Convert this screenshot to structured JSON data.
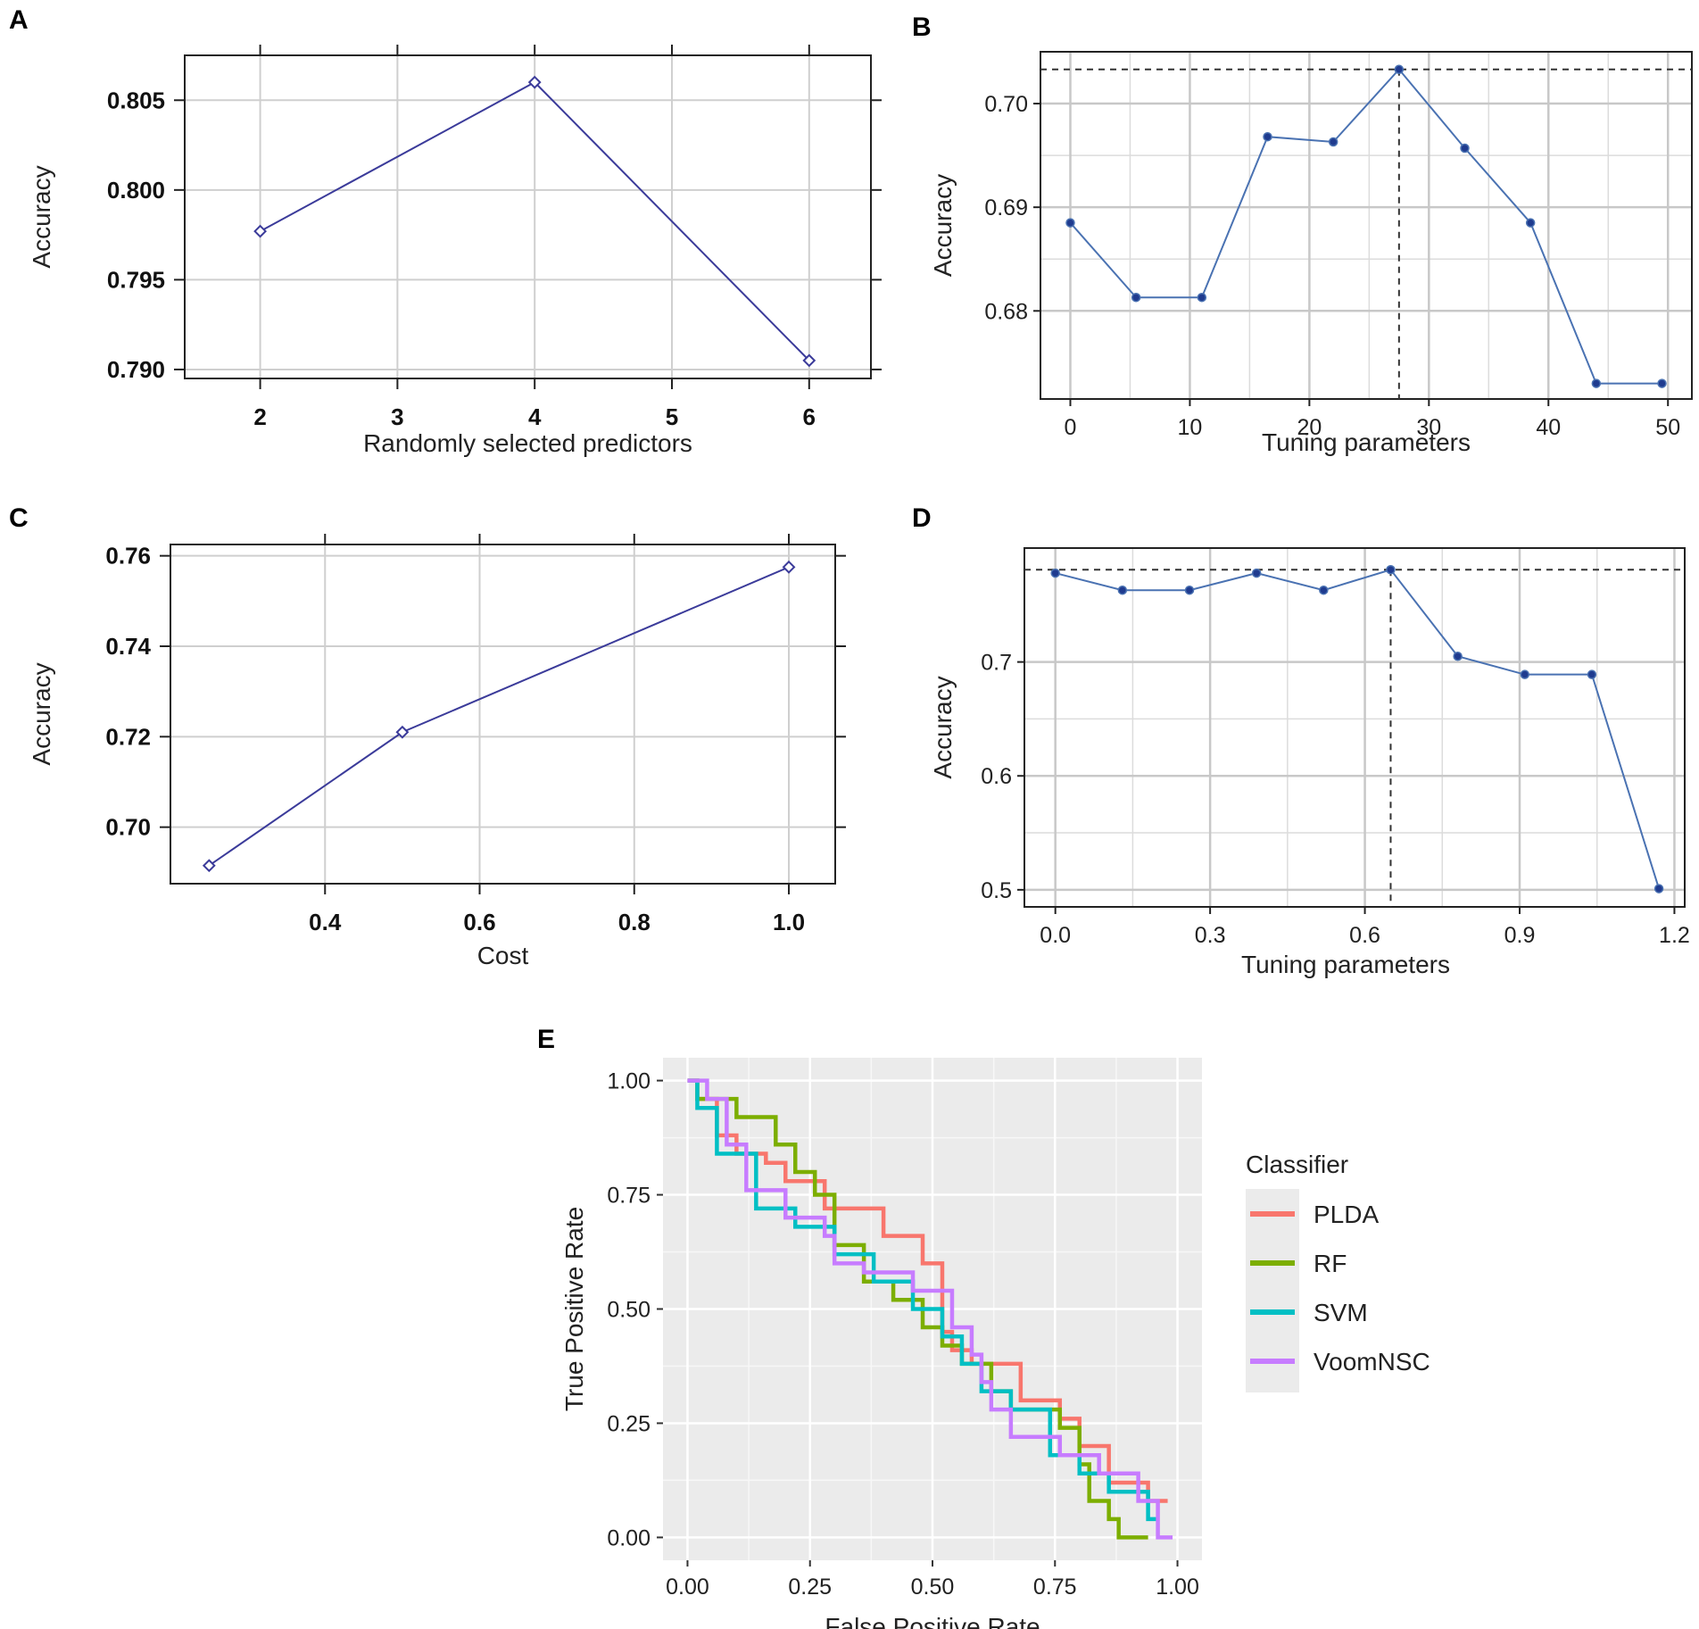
{
  "chart_data": [
    {
      "panel": "A",
      "type": "line",
      "title": "",
      "xlabel": "Randomly selected predictors",
      "ylabel": "Accuracy",
      "x": [
        2,
        4,
        6
      ],
      "y": [
        0.7977,
        0.806,
        0.7905
      ],
      "xticks": [
        "2",
        "3",
        "4",
        "5",
        "6"
      ],
      "yticks": [
        "0.790",
        "0.795",
        "0.800",
        "0.805"
      ],
      "xlim": [
        1.45,
        6.45
      ],
      "ylim": [
        0.7895,
        0.8075
      ],
      "marker": "diamond",
      "grid": true,
      "color": "#3b3b9a"
    },
    {
      "panel": "B",
      "type": "line",
      "title": "",
      "xlabel": "Tuning parameters",
      "ylabel": "Accuracy",
      "x": [
        0,
        5.5,
        11,
        16.5,
        22,
        27.5,
        33,
        38.5,
        44,
        49.5
      ],
      "y": [
        0.6885,
        0.6813,
        0.6813,
        0.6968,
        0.6963,
        0.7033,
        0.6957,
        0.6885,
        0.673,
        0.673
      ],
      "xticks": [
        "0",
        "10",
        "20",
        "30",
        "40",
        "50"
      ],
      "yticks": [
        "0.68",
        "0.69",
        "0.70"
      ],
      "xlim": [
        -2.5,
        52
      ],
      "ylim": [
        0.6715,
        0.705
      ],
      "best_x": 27.5,
      "best_y": 0.7033,
      "marker": "dot",
      "grid": true,
      "color": "#4a72b2"
    },
    {
      "panel": "C",
      "type": "line",
      "title": "",
      "xlabel": "Cost",
      "ylabel": "Accuracy",
      "x": [
        0.25,
        0.5,
        1.0
      ],
      "y": [
        0.6915,
        0.721,
        0.7575
      ],
      "xticks": [
        "0.4",
        "0.6",
        "0.8",
        "1.0"
      ],
      "yticks": [
        "0.70",
        "0.72",
        "0.74",
        "0.76"
      ],
      "xlim": [
        0.2,
        1.06
      ],
      "ylim": [
        0.6875,
        0.7625
      ],
      "marker": "diamond",
      "grid": true,
      "color": "#3b3b9a"
    },
    {
      "panel": "D",
      "type": "line",
      "title": "",
      "xlabel": "Tuning parameters",
      "ylabel": "Accuracy",
      "x": [
        0.0,
        0.13,
        0.26,
        0.39,
        0.52,
        0.65,
        0.78,
        0.91,
        1.04,
        1.17
      ],
      "y": [
        0.778,
        0.763,
        0.763,
        0.778,
        0.763,
        0.781,
        0.705,
        0.689,
        0.689,
        0.501
      ],
      "xticks": [
        "0.0",
        "0.3",
        "0.6",
        "0.9",
        "1.2"
      ],
      "yticks": [
        "0.5",
        "0.6",
        "0.7"
      ],
      "xlim": [
        -0.06,
        1.22
      ],
      "ylim": [
        0.485,
        0.8
      ],
      "best_x": 0.65,
      "best_y": 0.781,
      "marker": "dot",
      "grid": true,
      "color": "#4a72b2"
    },
    {
      "panel": "E",
      "type": "line",
      "title": "",
      "xlabel": "False Positive Rate",
      "ylabel": "True Positive Rate",
      "xticks": [
        "0.00",
        "0.25",
        "0.50",
        "0.75",
        "1.00"
      ],
      "yticks": [
        "0.00",
        "0.25",
        "0.50",
        "0.75",
        "1.00"
      ],
      "xlim": [
        -0.05,
        1.05
      ],
      "ylim": [
        -0.05,
        1.05
      ],
      "legend_title": "Classifier",
      "legend_position": "right",
      "series": [
        {
          "name": "PLDA",
          "color": "#f8766d",
          "x": [
            0,
            0.02,
            0.02,
            0.06,
            0.06,
            0.1,
            0.1,
            0.16,
            0.16,
            0.2,
            0.2,
            0.28,
            0.28,
            0.4,
            0.4,
            0.48,
            0.48,
            0.52,
            0.52,
            0.54,
            0.54,
            0.58,
            0.58,
            0.62,
            0.62,
            0.68,
            0.68,
            0.76,
            0.76,
            0.8,
            0.8,
            0.86,
            0.86,
            0.94,
            0.94,
            0.98
          ],
          "y": [
            1.0,
            1.0,
            0.96,
            0.96,
            0.88,
            0.88,
            0.84,
            0.84,
            0.82,
            0.82,
            0.78,
            0.78,
            0.72,
            0.72,
            0.66,
            0.66,
            0.6,
            0.6,
            0.45,
            0.45,
            0.41,
            0.41,
            0.38,
            0.38,
            0.38,
            0.38,
            0.3,
            0.3,
            0.26,
            0.26,
            0.2,
            0.2,
            0.12,
            0.12,
            0.08,
            0.08
          ]
        },
        {
          "name": "RF",
          "color": "#7cae00",
          "x": [
            0,
            0.02,
            0.02,
            0.1,
            0.1,
            0.18,
            0.18,
            0.22,
            0.22,
            0.26,
            0.26,
            0.3,
            0.3,
            0.36,
            0.36,
            0.42,
            0.42,
            0.48,
            0.48,
            0.52,
            0.52,
            0.56,
            0.56,
            0.62,
            0.62,
            0.66,
            0.66,
            0.76,
            0.76,
            0.8,
            0.8,
            0.82,
            0.82,
            0.86,
            0.86,
            0.88,
            0.88,
            0.9,
            0.9,
            0.94
          ],
          "y": [
            1.0,
            1.0,
            0.96,
            0.96,
            0.92,
            0.92,
            0.86,
            0.86,
            0.8,
            0.8,
            0.75,
            0.75,
            0.64,
            0.64,
            0.56,
            0.56,
            0.52,
            0.52,
            0.46,
            0.46,
            0.42,
            0.42,
            0.38,
            0.38,
            0.32,
            0.32,
            0.28,
            0.28,
            0.24,
            0.24,
            0.16,
            0.16,
            0.08,
            0.08,
            0.04,
            0.04,
            0.0,
            0.0,
            0.0,
            0.0
          ]
        },
        {
          "name": "SVM",
          "color": "#00bfc4",
          "x": [
            0,
            0.02,
            0.02,
            0.06,
            0.06,
            0.14,
            0.14,
            0.22,
            0.22,
            0.3,
            0.3,
            0.38,
            0.38,
            0.46,
            0.46,
            0.52,
            0.52,
            0.56,
            0.56,
            0.6,
            0.6,
            0.66,
            0.66,
            0.74,
            0.74,
            0.8,
            0.8,
            0.86,
            0.86,
            0.94,
            0.94,
            0.96
          ],
          "y": [
            1.0,
            1.0,
            0.94,
            0.94,
            0.84,
            0.84,
            0.72,
            0.72,
            0.68,
            0.68,
            0.62,
            0.62,
            0.56,
            0.56,
            0.5,
            0.5,
            0.44,
            0.44,
            0.38,
            0.38,
            0.32,
            0.32,
            0.28,
            0.28,
            0.18,
            0.18,
            0.14,
            0.14,
            0.1,
            0.1,
            0.04,
            0.04
          ]
        },
        {
          "name": "VoomNSC",
          "color": "#c77cff",
          "x": [
            0,
            0.04,
            0.04,
            0.08,
            0.08,
            0.12,
            0.12,
            0.2,
            0.2,
            0.28,
            0.28,
            0.3,
            0.3,
            0.36,
            0.36,
            0.46,
            0.46,
            0.54,
            0.54,
            0.58,
            0.58,
            0.6,
            0.6,
            0.62,
            0.62,
            0.66,
            0.66,
            0.76,
            0.76,
            0.84,
            0.84,
            0.92,
            0.92,
            0.96,
            0.96,
            0.99
          ],
          "y": [
            1.0,
            1.0,
            0.96,
            0.96,
            0.86,
            0.86,
            0.76,
            0.76,
            0.7,
            0.7,
            0.66,
            0.66,
            0.6,
            0.6,
            0.58,
            0.58,
            0.54,
            0.54,
            0.46,
            0.46,
            0.4,
            0.4,
            0.34,
            0.34,
            0.28,
            0.28,
            0.22,
            0.22,
            0.18,
            0.18,
            0.14,
            0.14,
            0.08,
            0.08,
            0.0,
            0.0
          ]
        }
      ]
    }
  ]
}
